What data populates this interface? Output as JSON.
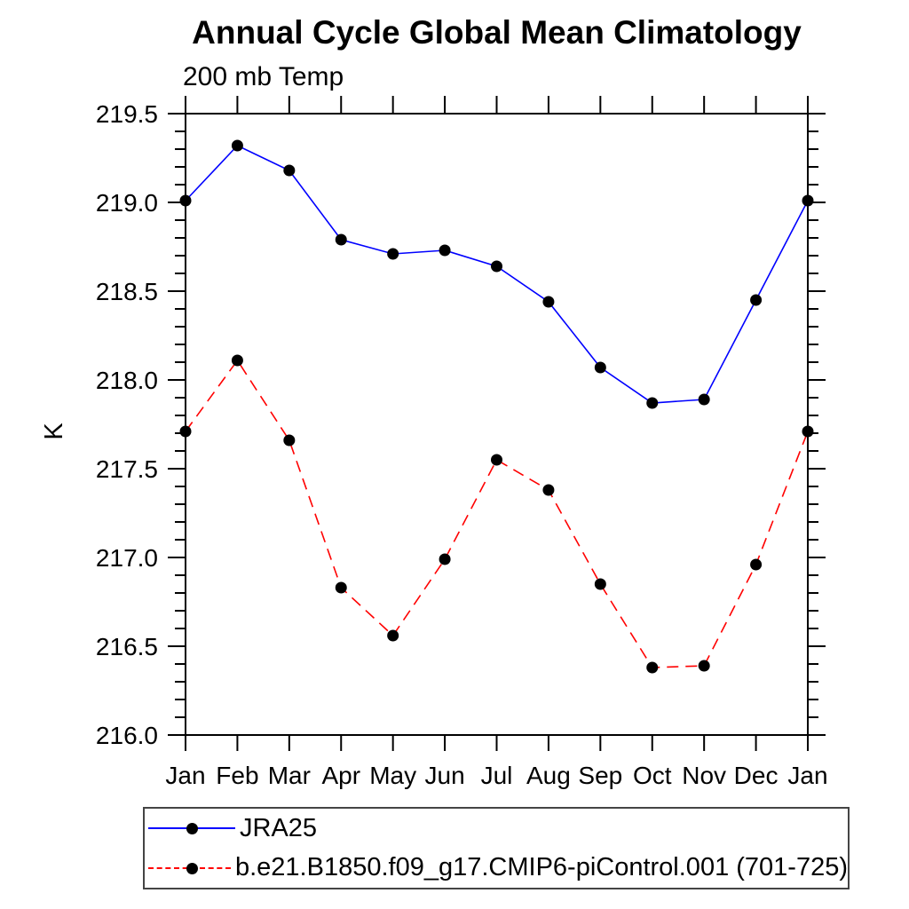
{
  "title": "Annual Cycle Global Mean Climatology",
  "subtitle": "200 mb Temp",
  "chart_data": {
    "type": "line",
    "title": "Annual Cycle Global Mean Climatology",
    "subtitle": "200 mb Temp",
    "ylabel": "K",
    "categories": [
      "Jan",
      "Feb",
      "Mar",
      "Apr",
      "May",
      "Jun",
      "Jul",
      "Aug",
      "Sep",
      "Oct",
      "Nov",
      "Dec",
      "Jan"
    ],
    "ylim": [
      216.0,
      219.5
    ],
    "ytick_major": 0.5,
    "ytick_minor": 0.1,
    "ytick_labels": [
      "216.0",
      "216.5",
      "217.0",
      "217.5",
      "218.0",
      "218.5",
      "219.0",
      "219.5"
    ],
    "grid": false,
    "legend_position": "bottom-left",
    "marker_color": "#000000",
    "series": [
      {
        "name": "JRA25",
        "color": "#0000ff",
        "style": "solid",
        "marker": "circle",
        "values": [
          219.01,
          219.32,
          219.18,
          218.79,
          218.71,
          218.73,
          218.64,
          218.44,
          218.07,
          217.87,
          217.89,
          218.45,
          219.01
        ]
      },
      {
        "name": "b.e21.B1850.f09_g17.CMIP6-piControl.001 (701-725)",
        "color": "#ff0000",
        "style": "dashed",
        "marker": "circle",
        "values": [
          217.71,
          218.11,
          217.66,
          216.83,
          216.56,
          216.99,
          217.55,
          217.38,
          216.85,
          216.38,
          216.39,
          216.96,
          217.71
        ]
      }
    ]
  }
}
